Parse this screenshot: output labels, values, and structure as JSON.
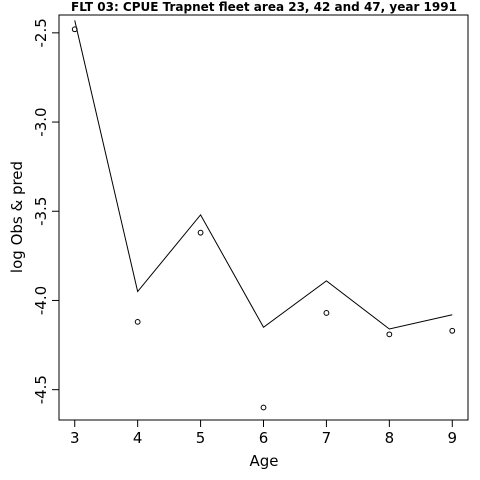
{
  "chart_data": {
    "type": "line",
    "title": "FLT 03: CPUE Trapnet fleet area 23, 42 and 47, year 1991",
    "xlabel": "Age",
    "ylabel": "log Obs & pred",
    "x": [
      3,
      4,
      5,
      6,
      7,
      8,
      9
    ],
    "xlim": [
      2.75,
      9.25
    ],
    "ylim": [
      -4.67,
      -2.4
    ],
    "xticks": [
      "3",
      "4",
      "5",
      "6",
      "7",
      "8",
      "9"
    ],
    "yticks": [
      "-2.5",
      "-3.0",
      "-3.5",
      "-4.0",
      "-4.5"
    ],
    "ytick_values": [
      -2.5,
      -3.0,
      -3.5,
      -4.0,
      -4.5
    ],
    "grid": false,
    "series": [
      {
        "style": "line",
        "color": "#000000",
        "values": [
          -2.43,
          -3.95,
          -3.52,
          -4.15,
          -3.89,
          -4.16,
          -4.08
        ]
      },
      {
        "style": "points",
        "color": "#000000",
        "values": [
          -2.48,
          -4.12,
          -3.62,
          -4.6,
          -4.07,
          -4.19,
          -4.17
        ]
      }
    ]
  }
}
